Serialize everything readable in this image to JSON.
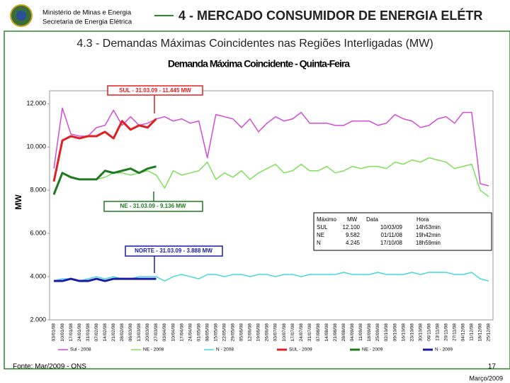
{
  "header": {
    "ministry": "Ministério de Minas e Energia",
    "secretariat": "Secretaria de Energia Elétrica",
    "section": "4 - MERCADO CONSUMIDOR DE ENERGIA ELÉTR"
  },
  "subtitle": "4.3 - Demandas Máximas Coincidentes nas Regiões Interligadas (MW)",
  "chart_data": {
    "type": "line",
    "title": "Demanda Máxima Coincidente - Quinta-Feira",
    "y_label": "MW",
    "categories": [
      "03/01/08",
      "10/01/08",
      "17/01/08",
      "24/01/08",
      "31/01/08",
      "07/02/08",
      "14/02/08",
      "21/02/08",
      "28/02/08",
      "06/03/08",
      "13/03/08",
      "20/03/08",
      "27/03/08",
      "03/04/08",
      "10/04/08",
      "17/04/08",
      "24/04/08",
      "01/05/08",
      "08/05/08",
      "15/05/08",
      "22/05/08",
      "29/05/08",
      "05/06/08",
      "12/06/08",
      "19/06/08",
      "26/06/08",
      "03/07/08",
      "10/07/08",
      "17/07/08",
      "24/07/08",
      "31/07/08",
      "07/08/08",
      "14/08/08",
      "21/08/08",
      "28/08/08",
      "04/09/08",
      "11/09/08",
      "18/09/08",
      "25/09/08",
      "02/10/08",
      "09/10/08",
      "16/10/08",
      "23/10/08",
      "30/10/08",
      "06/11/08",
      "13/11/08",
      "20/11/08",
      "27/11/08",
      "04/12/08",
      "11/12/08",
      "18/12/08",
      "25/12/08"
    ],
    "ylim": [
      2000,
      12600
    ],
    "yticks": [
      {
        "value": 2000,
        "label": "2.000"
      },
      {
        "value": 4000,
        "label": "4.000"
      },
      {
        "value": 6000,
        "label": "6.000"
      },
      {
        "value": 8000,
        "label": "8.000"
      },
      {
        "value": 10000,
        "label": "10.000"
      },
      {
        "value": 12000,
        "label": "12.000"
      }
    ],
    "grid": false,
    "series": [
      {
        "name": "Sul - 2008",
        "color": "#d54ad8",
        "width": 1.5,
        "values": [
          9000,
          11800,
          10600,
          10500,
          10500,
          10900,
          11000,
          11700,
          11000,
          11400,
          11000,
          11100,
          11300,
          11400,
          11200,
          11300,
          11100,
          11200,
          9500,
          11500,
          11400,
          11300,
          10900,
          11300,
          10700,
          11100,
          11400,
          11200,
          11300,
          11600,
          11100,
          11100,
          11100,
          11000,
          11000,
          11200,
          11200,
          11200,
          11000,
          11100,
          11500,
          11300,
          11200,
          10900,
          11000,
          11300,
          11400,
          11100,
          11600,
          11600,
          8300,
          8200
        ]
      },
      {
        "name": "NE - 2008",
        "color": "#7de05a",
        "width": 1.5,
        "values": [
          7900,
          8800,
          8600,
          8500,
          8500,
          8500,
          8600,
          8800,
          8800,
          8700,
          8800,
          8900,
          8700,
          8100,
          8900,
          8700,
          8800,
          8900,
          9300,
          8500,
          8800,
          8600,
          8900,
          8500,
          8800,
          9000,
          9200,
          8800,
          8900,
          9200,
          8900,
          8900,
          9100,
          8800,
          8900,
          9100,
          9000,
          9100,
          9100,
          9000,
          9300,
          9200,
          9400,
          9300,
          9500,
          9400,
          9300,
          9000,
          9100,
          9200,
          8000,
          7700
        ]
      },
      {
        "name": "N - 2008",
        "color": "#48d8e0",
        "width": 1.5,
        "values": [
          3800,
          3900,
          3900,
          3800,
          3900,
          4000,
          3900,
          4000,
          3900,
          3900,
          4000,
          4000,
          4000,
          3800,
          4000,
          4100,
          4000,
          3900,
          4100,
          4100,
          4000,
          4100,
          4100,
          4000,
          4100,
          4100,
          4000,
          4100,
          4100,
          4000,
          4100,
          4100,
          4100,
          4100,
          4200,
          4100,
          4100,
          4100,
          4200,
          4100,
          4100,
          4100,
          4200,
          4100,
          4200,
          4200,
          4200,
          4100,
          4100,
          4200,
          3900,
          3800
        ]
      },
      {
        "name": "SUL - 2009",
        "color": "#e02020",
        "width": 3,
        "values": [
          8400,
          10300,
          10500,
          10400,
          10500,
          10500,
          10700,
          10400,
          11200,
          10800,
          11000,
          10900,
          11300,
          null,
          null,
          null,
          null,
          null,
          null,
          null,
          null,
          null,
          null,
          null,
          null,
          null,
          null,
          null,
          null,
          null,
          null,
          null,
          null,
          null,
          null,
          null,
          null,
          null,
          null,
          null,
          null,
          null,
          null,
          null,
          null,
          null,
          null,
          null,
          null,
          null,
          null,
          null
        ]
      },
      {
        "name": "NE - 2009",
        "color": "#1e7a1e",
        "width": 3,
        "values": [
          7800,
          8800,
          8600,
          8500,
          8500,
          8500,
          8900,
          8800,
          8900,
          9000,
          8800,
          9000,
          9100,
          null,
          null,
          null,
          null,
          null,
          null,
          null,
          null,
          null,
          null,
          null,
          null,
          null,
          null,
          null,
          null,
          null,
          null,
          null,
          null,
          null,
          null,
          null,
          null,
          null,
          null,
          null,
          null,
          null,
          null,
          null,
          null,
          null,
          null,
          null,
          null,
          null,
          null,
          null
        ]
      },
      {
        "name": "N - 2009",
        "color": "#1a1aa8",
        "width": 3,
        "values": [
          3800,
          3800,
          3900,
          3800,
          3800,
          3900,
          3800,
          3900,
          3900,
          3900,
          3900,
          3900,
          3900,
          null,
          null,
          null,
          null,
          null,
          null,
          null,
          null,
          null,
          null,
          null,
          null,
          null,
          null,
          null,
          null,
          null,
          null,
          null,
          null,
          null,
          null,
          null,
          null,
          null,
          null,
          null,
          null,
          null,
          null,
          null,
          null,
          null,
          null,
          null,
          null,
          null,
          null,
          null
        ]
      }
    ],
    "annotations": [
      "SUL - 31.03.09 - 11.445 MW",
      "NE - 31.03.09 - 9.136 MW",
      "NORTE - 31.03.09 - 3.888 MW"
    ],
    "max_table": {
      "header": [
        "Máximo",
        "MW",
        "Data",
        "Hora"
      ],
      "rows": [
        [
          "SUL",
          "12.100",
          "10/03/09",
          "14h53min"
        ],
        [
          "NE",
          "9.582",
          "01/11/08",
          "19h42min"
        ],
        [
          "N",
          "4.245",
          "17/10/08",
          "18h59min"
        ]
      ]
    }
  },
  "footer": {
    "source": "Fonte: Mar/2009 - ONS",
    "page": "17",
    "date": "Março/2009"
  }
}
